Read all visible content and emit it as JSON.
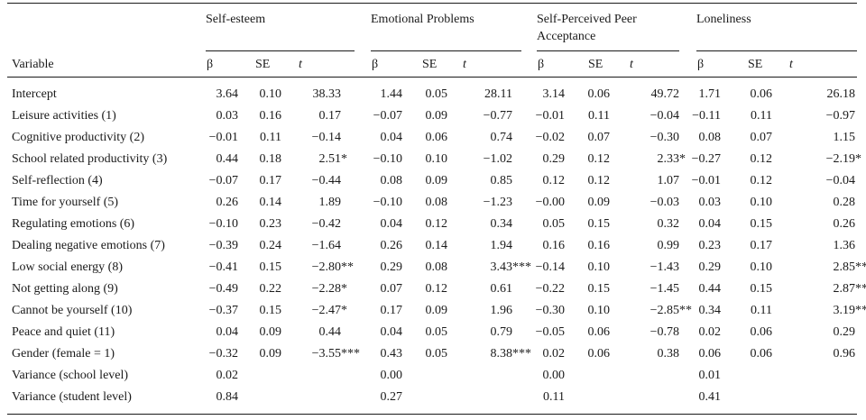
{
  "groups": [
    {
      "label": "Self-esteem"
    },
    {
      "label": "Emotional Problems"
    },
    {
      "label": "Self-Perceived Peer",
      "label2": "Acceptance"
    },
    {
      "label": "Loneliness"
    }
  ],
  "variable_header": "Variable",
  "sub_headers": {
    "beta": "β",
    "se": "SE",
    "t": "t"
  },
  "rows": [
    {
      "name": "Intercept",
      "vals": [
        "3.64",
        "0.10",
        "38.33",
        "1.44",
        "0.05",
        "28.11",
        "3.14",
        "0.06",
        "49.72",
        "1.71",
        "0.06",
        "26.18"
      ]
    },
    {
      "name": "Leisure activities (1)",
      "vals": [
        "0.03",
        "0.16",
        "0.17",
        "−0.07",
        "0.09",
        "−0.77",
        "−0.01",
        "0.11",
        "−0.04",
        "−0.11",
        "0.11",
        "−0.97"
      ]
    },
    {
      "name": "Cognitive productivity (2)",
      "vals": [
        "−0.01",
        "0.11",
        "−0.14",
        "0.04",
        "0.06",
        "0.74",
        "−0.02",
        "0.07",
        "−0.30",
        "0.08",
        "0.07",
        "1.15"
      ]
    },
    {
      "name": "School related productivity (3)",
      "vals": [
        "0.44",
        "0.18",
        "2.51*",
        "−0.10",
        "0.10",
        "−1.02",
        "0.29",
        "0.12",
        "2.33*",
        "−0.27",
        "0.12",
        "−2.19*"
      ]
    },
    {
      "name": "Self-reflection (4)",
      "vals": [
        "−0.07",
        "0.17",
        "−0.44",
        "0.08",
        "0.09",
        "0.85",
        "0.12",
        "0.12",
        "1.07",
        "−0.01",
        "0.12",
        "−0.04"
      ]
    },
    {
      "name": "Time for yourself (5)",
      "vals": [
        "0.26",
        "0.14",
        "1.89",
        "−0.10",
        "0.08",
        "−1.23",
        "−0.00",
        "0.09",
        "−0.03",
        "0.03",
        "0.10",
        "0.28"
      ]
    },
    {
      "name": "Regulating emotions (6)",
      "vals": [
        "−0.10",
        "0.23",
        "−0.42",
        "0.04",
        "0.12",
        "0.34",
        "0.05",
        "0.15",
        "0.32",
        "0.04",
        "0.15",
        "0.26"
      ]
    },
    {
      "name": "Dealing negative emotions (7)",
      "vals": [
        "−0.39",
        "0.24",
        "−1.64",
        "0.26",
        "0.14",
        "1.94",
        "0.16",
        "0.16",
        "0.99",
        "0.23",
        "0.17",
        "1.36"
      ]
    },
    {
      "name": "Low social energy (8)",
      "vals": [
        "−0.41",
        "0.15",
        "−2.80**",
        "0.29",
        "0.08",
        "3.43***",
        "−0.14",
        "0.10",
        "−1.43",
        "0.29",
        "0.10",
        "2.85**"
      ]
    },
    {
      "name": "Not getting along (9)",
      "vals": [
        "−0.49",
        "0.22",
        "−2.28*",
        "0.07",
        "0.12",
        "0.61",
        "−0.22",
        "0.15",
        "−1.45",
        "0.44",
        "0.15",
        "2.87**"
      ]
    },
    {
      "name": "Cannot be yourself (10)",
      "vals": [
        "−0.37",
        "0.15",
        "−2.47*",
        "0.17",
        "0.09",
        "1.96",
        "−0.30",
        "0.10",
        "−2.85**",
        "0.34",
        "0.11",
        "3.19**"
      ]
    },
    {
      "name": "Peace and quiet (11)",
      "vals": [
        "0.04",
        "0.09",
        "0.44",
        "0.04",
        "0.05",
        "0.79",
        "−0.05",
        "0.06",
        "−0.78",
        "0.02",
        "0.06",
        "0.29"
      ]
    },
    {
      "name": "Gender (female = 1)",
      "vals": [
        "−0.32",
        "0.09",
        "−3.55***",
        "0.43",
        "0.05",
        "8.38***",
        "0.02",
        "0.06",
        "0.38",
        "0.06",
        "0.06",
        "0.96"
      ]
    },
    {
      "name": "Variance (school level)",
      "vals": [
        "0.02",
        "",
        "",
        "0.00",
        "",
        "",
        "0.00",
        "",
        "",
        "0.01",
        "",
        ""
      ]
    },
    {
      "name": "Variance (student level)",
      "vals": [
        "0.84",
        "",
        "",
        "0.27",
        "",
        "",
        "0.11",
        "",
        "",
        "0.41",
        "",
        ""
      ]
    }
  ]
}
